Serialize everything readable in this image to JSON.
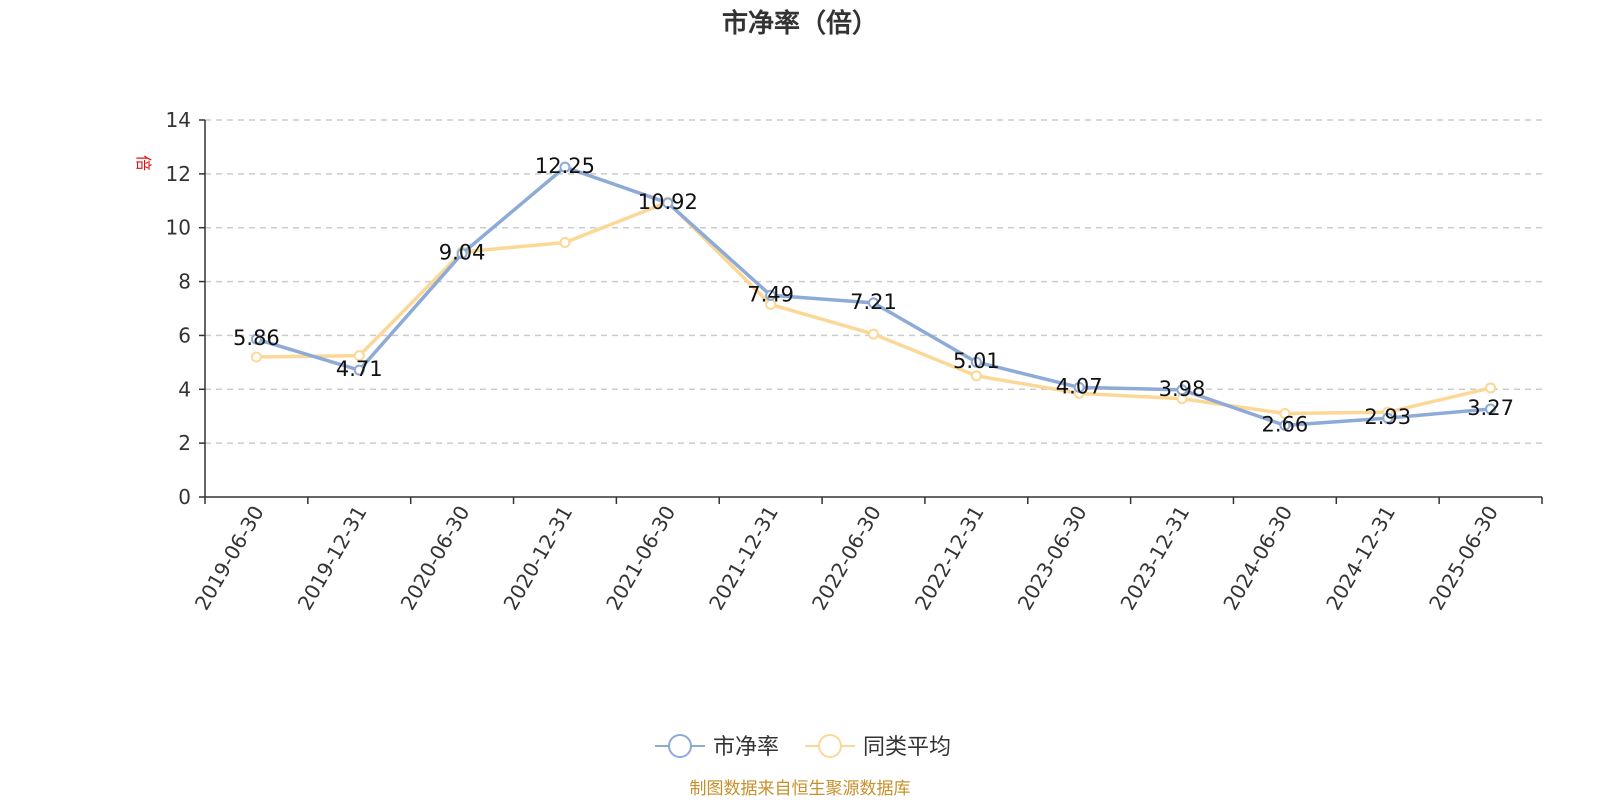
{
  "chart_data": {
    "type": "line",
    "title": "市净率（倍）",
    "y_unit": "倍",
    "categories": [
      "2019-06-30",
      "2019-12-31",
      "2020-06-30",
      "2020-12-31",
      "2021-06-30",
      "2021-12-31",
      "2022-06-30",
      "2022-12-31",
      "2023-06-30",
      "2023-12-31",
      "2024-06-30",
      "2024-12-31",
      "2025-06-30"
    ],
    "series": [
      {
        "name": "市净率",
        "color": "#8eaad6",
        "values": [
          5.86,
          4.71,
          9.04,
          12.25,
          10.92,
          7.49,
          7.21,
          5.01,
          4.07,
          3.98,
          2.66,
          2.93,
          3.27
        ],
        "data_labels": [
          "5.86",
          "4.71",
          "9.04",
          "12.25",
          "10.92",
          "7.49",
          "7.21",
          "5.01",
          "4.07",
          "3.98",
          "2.66",
          "2.93",
          "3.27"
        ]
      },
      {
        "name": "同类平均",
        "color": "#fbd896",
        "values": [
          5.2,
          5.25,
          9.1,
          9.45,
          10.95,
          7.15,
          6.05,
          4.5,
          3.85,
          3.65,
          3.1,
          3.15,
          4.05
        ]
      }
    ],
    "ylim": [
      0,
      14
    ],
    "yticks": [
      0,
      2,
      4,
      6,
      8,
      10,
      12,
      14
    ],
    "grid": true,
    "legend_position": "bottom-center"
  },
  "source_note": "制图数据来自恒生聚源数据库"
}
